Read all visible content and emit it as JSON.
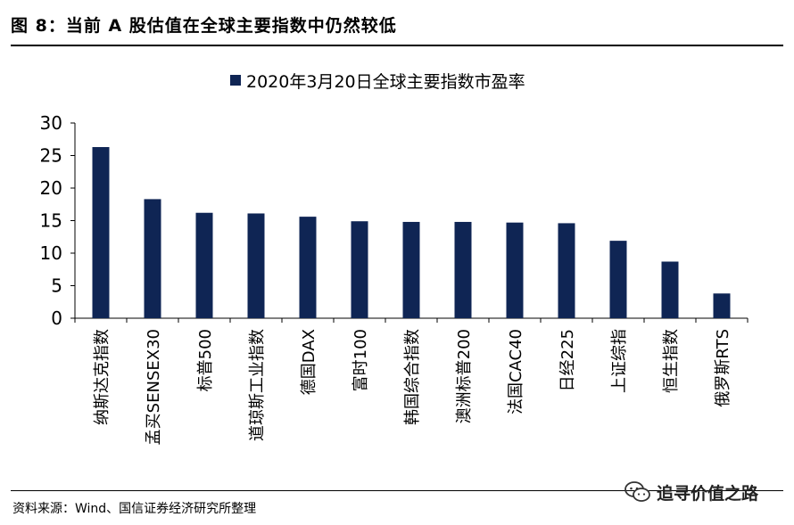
{
  "figure": {
    "title": "图 8：当前 A 股估值在全球主要指数中仍然较低",
    "source": "资料来源：Wind、国信证券经济研究所整理",
    "watermark": "追寻价值之路",
    "watermark_icon": "wechat-icon"
  },
  "chart_data": {
    "type": "bar",
    "title": "",
    "xlabel": "",
    "ylabel": "",
    "ylim": [
      0,
      30
    ],
    "yticks": [
      0,
      5,
      10,
      15,
      20,
      25,
      30
    ],
    "grid": false,
    "legend_position": "top-center",
    "bar_color": "#0f2554",
    "categories": [
      "纳斯达克指数",
      "孟买SENSEX30",
      "标普500",
      "道琼斯工业指数",
      "德国DAX",
      "富时100",
      "韩国综合指数",
      "澳洲标普200",
      "法国CAC40",
      "日经225",
      "上证综指",
      "恒生指数",
      "俄罗斯RTS"
    ],
    "series": [
      {
        "name": "2020年3月20日全球主要指数市盈率",
        "values": [
          26.3,
          18.3,
          16.2,
          16.1,
          15.6,
          14.9,
          14.8,
          14.8,
          14.7,
          14.6,
          11.9,
          8.7,
          3.8
        ]
      }
    ]
  }
}
